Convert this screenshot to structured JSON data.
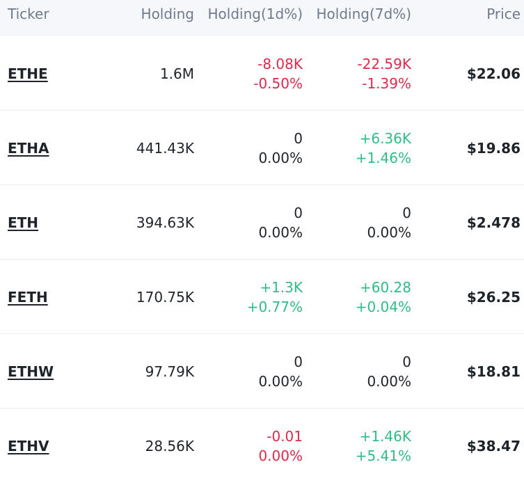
{
  "colors": {
    "negative": "#e0294a",
    "positive": "#2ebd85",
    "header_bg": "#f5f7fa",
    "header_text": "#707a8a"
  },
  "header": {
    "ticker": "Ticker",
    "holding": "Holding",
    "holding_1d": "Holding(1d%)",
    "holding_7d": "Holding(7d%)",
    "price": "Price"
  },
  "rows": [
    {
      "ticker": "ETHE",
      "holding": "1.6M",
      "d1_value": "-8.08K",
      "d1_pct": "-0.50%",
      "d1_value_trend": "neg",
      "d1_pct_trend": "neg",
      "d7_value": "-22.59K",
      "d7_pct": "-1.39%",
      "d7_value_trend": "neg",
      "d7_pct_trend": "neg",
      "price": "$22.06"
    },
    {
      "ticker": "ETHA",
      "holding": "441.43K",
      "d1_value": "0",
      "d1_pct": "0.00%",
      "d1_value_trend": "neu",
      "d1_pct_trend": "neu",
      "d7_value": "+6.36K",
      "d7_pct": "+1.46%",
      "d7_value_trend": "pos",
      "d7_pct_trend": "pos",
      "price": "$19.86"
    },
    {
      "ticker": "ETH",
      "holding": "394.63K",
      "d1_value": "0",
      "d1_pct": "0.00%",
      "d1_value_trend": "neu",
      "d1_pct_trend": "neu",
      "d7_value": "0",
      "d7_pct": "0.00%",
      "d7_value_trend": "neu",
      "d7_pct_trend": "neu",
      "price": "$2.478"
    },
    {
      "ticker": "FETH",
      "holding": "170.75K",
      "d1_value": "+1.3K",
      "d1_pct": "+0.77%",
      "d1_value_trend": "pos",
      "d1_pct_trend": "pos",
      "d7_value": "+60.28",
      "d7_pct": "+0.04%",
      "d7_value_trend": "pos",
      "d7_pct_trend": "pos",
      "price": "$26.25"
    },
    {
      "ticker": "ETHW",
      "holding": "97.79K",
      "d1_value": "0",
      "d1_pct": "0.00%",
      "d1_value_trend": "neu",
      "d1_pct_trend": "neu",
      "d7_value": "0",
      "d7_pct": "0.00%",
      "d7_value_trend": "neu",
      "d7_pct_trend": "neu",
      "price": "$18.81"
    },
    {
      "ticker": "ETHV",
      "holding": "28.56K",
      "d1_value": "-0.01",
      "d1_pct": "0.00%",
      "d1_value_trend": "neg",
      "d1_pct_trend": "neg",
      "d7_value": "+1.46K",
      "d7_pct": "+5.41%",
      "d7_value_trend": "pos",
      "d7_pct_trend": "pos",
      "price": "$38.47"
    }
  ]
}
